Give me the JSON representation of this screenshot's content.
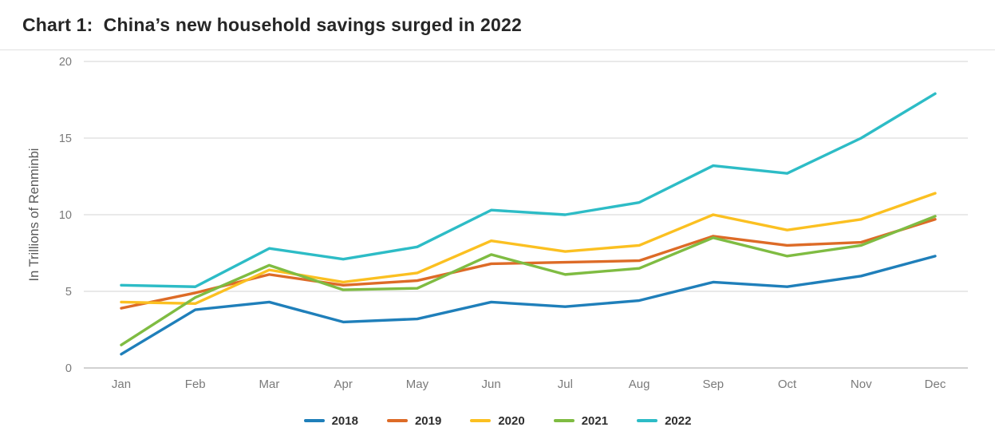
{
  "header": {
    "title": "Chart 1:  China’s new household savings surged in 2022"
  },
  "chart_data": {
    "type": "line",
    "title": "Chart 1:  China’s new household savings surged in 2022",
    "xlabel": "",
    "ylabel": "In Trillions of Renminbi",
    "categories": [
      "Jan",
      "Feb",
      "Mar",
      "Apr",
      "May",
      "Jun",
      "Jul",
      "Aug",
      "Sep",
      "Oct",
      "Nov",
      "Dec"
    ],
    "ylim": [
      0,
      20
    ],
    "yticks": [
      0,
      5,
      10,
      15,
      20
    ],
    "grid": "horizontal",
    "legend_position": "bottom",
    "series": [
      {
        "name": "2018",
        "color": "#1f7fba",
        "values": [
          0.9,
          3.8,
          4.3,
          3.0,
          3.2,
          4.3,
          4.0,
          4.4,
          5.6,
          5.3,
          6.0,
          7.3
        ]
      },
      {
        "name": "2019",
        "color": "#dd6b27",
        "values": [
          3.9,
          4.9,
          6.1,
          5.4,
          5.7,
          6.8,
          6.9,
          7.0,
          8.6,
          8.0,
          8.2,
          9.7
        ]
      },
      {
        "name": "2020",
        "color": "#fbc021",
        "values": [
          4.3,
          4.2,
          6.4,
          5.6,
          6.2,
          8.3,
          7.6,
          8.0,
          10.0,
          9.0,
          9.7,
          11.4
        ]
      },
      {
        "name": "2021",
        "color": "#7fbc42",
        "values": [
          1.5,
          4.6,
          6.7,
          5.1,
          5.2,
          7.4,
          6.1,
          6.5,
          8.5,
          7.3,
          8.0,
          9.9
        ]
      },
      {
        "name": "2022",
        "color": "#2dbcc6",
        "values": [
          5.4,
          5.3,
          7.8,
          7.1,
          7.9,
          10.3,
          10.0,
          10.8,
          13.2,
          12.7,
          15.0,
          17.9
        ]
      }
    ],
    "style": {
      "grid_color": "#dcdcdc",
      "axis_line_color": "#c2c2c2",
      "tick_text_color": "#7a7a7a",
      "axis_label_color": "#5a5a5a"
    }
  }
}
